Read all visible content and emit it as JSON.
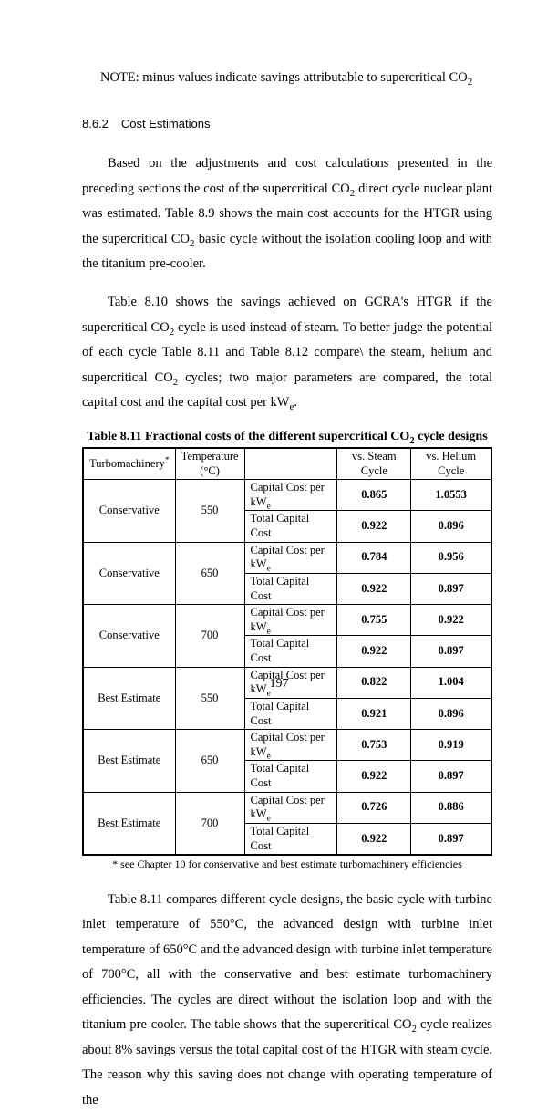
{
  "note_prefix": "NOTE: minus values indicate savings attributable to supercritical CO",
  "note_sub": "2",
  "section": {
    "num": "8.6.2",
    "title": "Cost Estimations"
  },
  "p1": {
    "a": "Based on the adjustments and cost calculations presented in the preceding sections the cost of the supercritical CO",
    "b": " direct cycle nuclear plant was estimated.  Table 8.9 shows the main cost accounts for the HTGR using the supercritical CO",
    "c": " basic cycle without the isolation cooling loop and with the titanium pre-cooler."
  },
  "p2": {
    "a": "Table 8.10 shows the savings achieved on GCRA's HTGR if the supercritical CO",
    "b": " cycle is used instead of steam.  To better judge the potential of each cycle Table 8.11 and Table 8.12 compare\\ the steam, helium and supercritical CO",
    "c": " cycles; two major parameters are compared, the total capital cost and the capital cost per kW",
    "d": "."
  },
  "table": {
    "caption_a": "Table 8.11 Fractional costs of the different supercritical CO",
    "caption_b": " cycle designs",
    "headers": {
      "c0a": "Turbomachinery",
      "c0_star": "*",
      "c1a": "Temperature",
      "c1b": "(°C)",
      "c2": "",
      "c3": "vs. Steam Cycle",
      "c4": "vs. Helium Cycle"
    },
    "metric_a_pre": "Capital Cost per kW",
    "metric_a_sub": "e",
    "metric_b": "Total Capital Cost",
    "rows": [
      {
        "turbo": "Conservative",
        "temp": "550",
        "steam_a": "0.865",
        "helium_a": "1.0553",
        "steam_b": "0.922",
        "helium_b": "0.896"
      },
      {
        "turbo": "Conservative",
        "temp": "650",
        "steam_a": "0.784",
        "helium_a": "0.956",
        "steam_b": "0.922",
        "helium_b": "0.897"
      },
      {
        "turbo": "Conservative",
        "temp": "700",
        "steam_a": "0.755",
        "helium_a": "0.922",
        "steam_b": "0.922",
        "helium_b": "0.897"
      },
      {
        "turbo": "Best Estimate",
        "temp": "550",
        "steam_a": "0.822",
        "helium_a": "1.004",
        "steam_b": "0.921",
        "helium_b": "0.896"
      },
      {
        "turbo": "Best Estimate",
        "temp": "650",
        "steam_a": "0.753",
        "helium_a": "0.919",
        "steam_b": "0.922",
        "helium_b": "0.897"
      },
      {
        "turbo": "Best Estimate",
        "temp": "700",
        "steam_a": "0.726",
        "helium_a": "0.886",
        "steam_b": "0.922",
        "helium_b": "0.897"
      }
    ],
    "footnote": "* see Chapter 10 for conservative and best estimate turbomachinery efficiencies"
  },
  "p3": {
    "a": "Table 8.11 compares different cycle designs, the basic cycle with turbine inlet temperature of 550°C, the advanced design with turbine inlet temperature of 650°C and the advanced design with turbine inlet temperature of 700°C, all with the conservative and best estimate turbomachinery efficiencies.  The cycles are direct without the isolation loop and with the titanium pre-cooler.  The table shows that the supercritical CO",
    "b": " cycle realizes about 8% savings versus the total capital cost of the HTGR with steam cycle.  The reason why this saving does not change with operating temperature of the"
  },
  "pagenum": "197"
}
